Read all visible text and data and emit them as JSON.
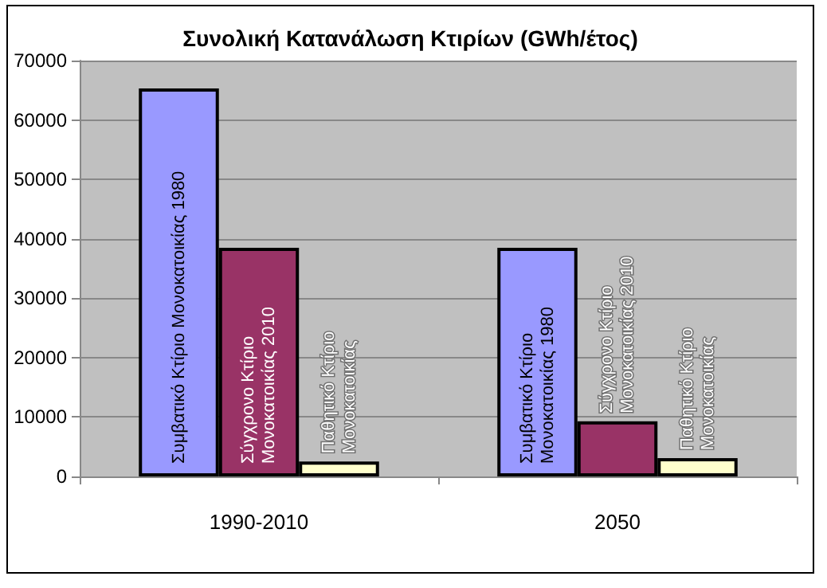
{
  "chart_data": {
    "type": "bar",
    "title": "Συνολική Κατανάλωση Κτιρίων (GWh/έτος)",
    "categories": [
      "1990-2010",
      "2050"
    ],
    "series": [
      {
        "name": "Συμβατικό Κτίριο Μονοκατοικίας 1980",
        "color": "#9999ff",
        "values": [
          65300,
          38500
        ]
      },
      {
        "name": "Σύγχρονο Κτίριο Μονοκατοικίας 2010",
        "color": "#993366",
        "values": [
          38500,
          9300
        ]
      },
      {
        "name": "Παθητικό Κτίριο Μονοκατοικίας",
        "color": "#ffffcc",
        "values": [
          2500,
          3100
        ]
      }
    ],
    "ylim": [
      0,
      70000
    ],
    "yticks": [
      0,
      10000,
      20000,
      30000,
      40000,
      50000,
      60000,
      70000
    ],
    "grid": "y",
    "legend": false
  }
}
